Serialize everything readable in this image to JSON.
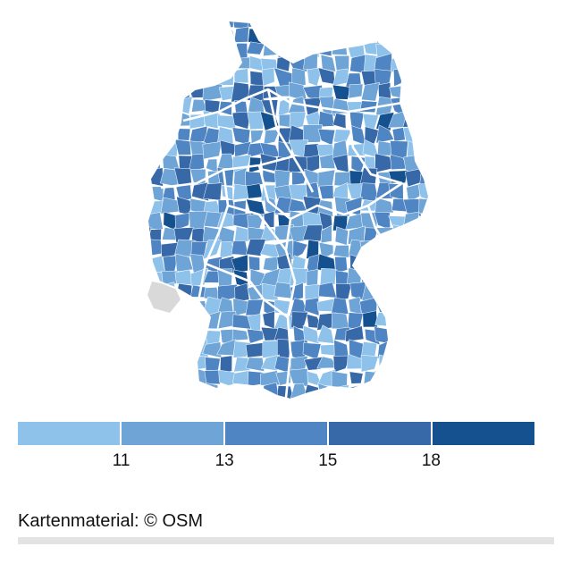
{
  "map": {
    "region": "Deutschland",
    "units": "Landkreise",
    "missing_data_color": "#d9d9d9",
    "state_border_color": "#ffffff"
  },
  "legend": {
    "colors": [
      "#8ec2ea",
      "#6fa4d6",
      "#4f85c2",
      "#3768a8",
      "#15508f"
    ],
    "thresholds": [
      "11",
      "13",
      "15",
      "18"
    ]
  },
  "attribution": "Kartenmaterial: © OSM"
}
